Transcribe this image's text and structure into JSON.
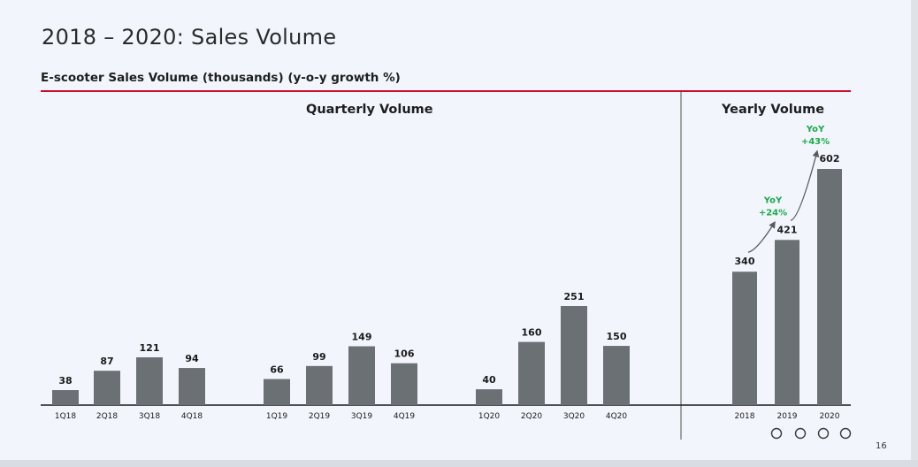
{
  "slide": {
    "title": "2018 – 2020: Sales Volume",
    "subtitle": "E-scooter Sales Volume (thousands) (y-o-y growth %)",
    "page_number": "16",
    "colors": {
      "accent_rule": "#c8102e",
      "bar": "#6b7075",
      "growth": "#1aaa4a"
    }
  },
  "chart_data": [
    {
      "type": "bar",
      "title": "Quarterly Volume",
      "categories": [
        "1Q18",
        "2Q18",
        "3Q18",
        "4Q18",
        "1Q19",
        "2Q19",
        "3Q19",
        "4Q19",
        "1Q20",
        "2Q20",
        "3Q20",
        "4Q20"
      ],
      "values": [
        38,
        87,
        121,
        94,
        66,
        99,
        149,
        106,
        40,
        160,
        251,
        150
      ],
      "data_labels": [
        "38",
        "87",
        "121",
        "94",
        "66",
        "99",
        "149",
        "106",
        "40",
        "160",
        "251",
        "150"
      ]
    },
    {
      "type": "bar",
      "title": "Yearly Volume",
      "categories": [
        "2018",
        "2019",
        "2020"
      ],
      "values": [
        340,
        421,
        602
      ],
      "data_labels": [
        "340",
        "421",
        "602"
      ],
      "annotations": [
        {
          "between": [
            "2018",
            "2019"
          ],
          "line1": "YoY",
          "line2": "+24%"
        },
        {
          "between": [
            "2019",
            "2020"
          ],
          "line1": "YoY",
          "line2": "+43%"
        }
      ]
    }
  ]
}
